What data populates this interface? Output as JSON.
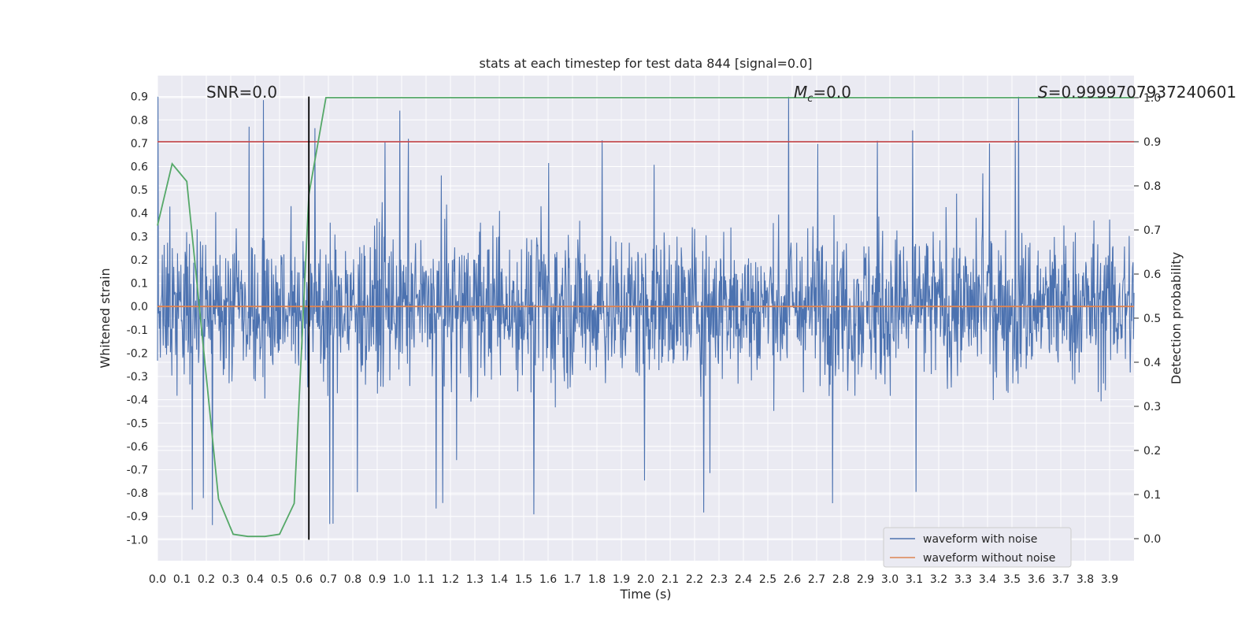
{
  "chart_data": {
    "type": "line",
    "title": "stats at each timestep for test data 844 [signal=0.0]",
    "xlabel": "Time (s)",
    "ylabel_left": "Whitened strain",
    "ylabel_right": "Detection probability",
    "xlim": [
      0.0,
      4.0
    ],
    "ylim_left": [
      -1.09,
      0.99
    ],
    "ylim_right": [
      -0.05,
      1.05
    ],
    "x_ticks": [
      "0.0",
      "0.1",
      "0.2",
      "0.3",
      "0.4",
      "0.5",
      "0.6",
      "0.7",
      "0.8",
      "0.9",
      "1.0",
      "1.1",
      "1.2",
      "1.3",
      "1.4",
      "1.5",
      "1.6",
      "1.7",
      "1.8",
      "1.9",
      "2.0",
      "2.1",
      "2.2",
      "2.3",
      "2.4",
      "2.5",
      "2.6",
      "2.7",
      "2.8",
      "2.9",
      "3.0",
      "3.1",
      "3.2",
      "3.3",
      "3.4",
      "3.5",
      "3.6",
      "3.7",
      "3.8",
      "3.9"
    ],
    "y_ticks_left": [
      "0.9",
      "0.8",
      "0.7",
      "0.6",
      "0.5",
      "0.4",
      "0.3",
      "0.2",
      "0.1",
      "0.0",
      "-0.1",
      "-0.2",
      "-0.3",
      "-0.4",
      "-0.5",
      "-0.6",
      "-0.7",
      "-0.8",
      "-0.9",
      "-1.0"
    ],
    "y_ticks_right": [
      "1.0",
      "0.9",
      "0.8",
      "0.7",
      "0.6",
      "0.5",
      "0.4",
      "0.3",
      "0.2",
      "0.1",
      "0.0"
    ],
    "grid": true,
    "legend_position": "lower-right",
    "annotations": {
      "snr": "SNR=0.0",
      "mc_symbol": "M",
      "mc_sub": "c",
      "mc_value": "=0.0",
      "s_symbol": "S",
      "s_value": "=0.9999707937240601"
    },
    "series": [
      {
        "name": "waveform with noise",
        "color": "#4c72b0",
        "description_values": "dense noise between roughly -1.0 and 0.9"
      },
      {
        "name": "waveform without noise",
        "color": "#dd8452",
        "y_constant": 0.0
      },
      {
        "color": "#55a868",
        "axis": "right",
        "x": [
          0.0,
          0.06,
          0.12,
          0.25,
          0.31,
          0.37,
          0.44,
          0.5,
          0.56,
          0.62,
          0.69,
          0.75,
          4.0
        ],
        "y": [
          0.71,
          0.85,
          0.81,
          0.09,
          0.01,
          0.005,
          0.005,
          0.01,
          0.08,
          0.78,
          1.0,
          1.0,
          1.0
        ]
      }
    ],
    "threshold_line": {
      "axis": "right",
      "value": 0.9,
      "color": "#c44e52"
    },
    "vertical_line": {
      "x": 0.62,
      "color": "#000000",
      "ylim_left": [
        -1.0,
        0.9
      ]
    }
  }
}
